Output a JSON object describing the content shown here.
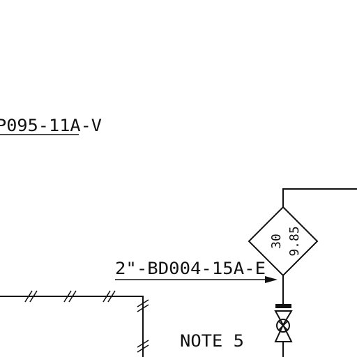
{
  "line_labels": {
    "upper_line_tag": "P095-11A-V",
    "lower_line_tag": "2\"-BD004-15A-E"
  },
  "instrument_diamond": {
    "left_value": "30",
    "right_value": "9.85"
  },
  "note": "NOTE 5"
}
